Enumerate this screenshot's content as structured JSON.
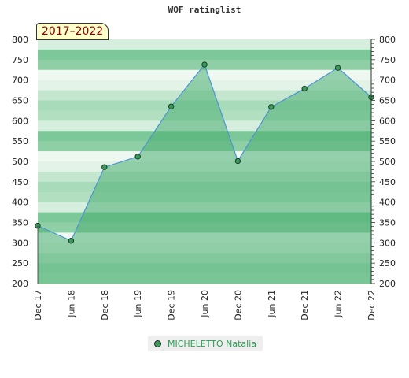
{
  "chart_data": {
    "type": "area",
    "title": "WOF ratinglist",
    "period_label": "2017–2022",
    "categories": [
      "Dec 17",
      "Jun 18",
      "Dec 18",
      "Jun 19",
      "Dec 19",
      "Jun 20",
      "Dec 20",
      "Jun 21",
      "Dec 21",
      "Jun 22",
      "Dec 22"
    ],
    "series": [
      {
        "name": "MICHELETTO Natalia",
        "values": [
          342,
          305,
          486,
          512,
          635,
          738,
          501,
          634,
          679,
          730,
          658
        ]
      }
    ],
    "ylim": [
      200,
      800
    ],
    "yticks": [
      200,
      250,
      300,
      350,
      400,
      450,
      500,
      550,
      600,
      650,
      700,
      750,
      800
    ],
    "grid": true,
    "legend_position": "bottom",
    "colors": {
      "line": "#4d93d6",
      "fill": "#4caf72",
      "marker": "#3a9a5a",
      "band_light": "#eef8f1",
      "band_dark": "#7cc898"
    }
  }
}
